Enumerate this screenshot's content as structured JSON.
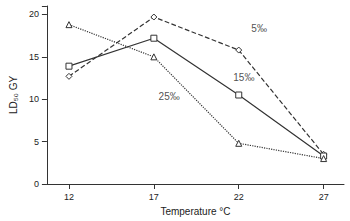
{
  "chart_data": {
    "type": "line",
    "x_label": "Temperature °C",
    "y_label": "LD₅₀ GY",
    "xlim": [
      10.7,
      28.2
    ],
    "xticks": [
      12,
      17,
      22,
      27
    ],
    "ylim": [
      0,
      21
    ],
    "yticks": [
      0,
      5,
      10,
      15,
      20
    ],
    "grid": false,
    "series": [
      {
        "name": "5‰",
        "color": "#333333",
        "line_style": "dashed",
        "marker": "diamond",
        "x": [
          12,
          17,
          22,
          27
        ],
        "values": [
          12.7,
          19.7,
          15.8,
          3.5
        ]
      },
      {
        "name": "15‰",
        "color": "#333333",
        "line_style": "solid",
        "marker": "square",
        "x": [
          12,
          17,
          22,
          27
        ],
        "values": [
          13.9,
          17.2,
          10.5,
          3.3
        ]
      },
      {
        "name": "25‰",
        "color": "#333333",
        "line_style": "dotted",
        "marker": "triangle",
        "x": [
          12,
          17,
          22,
          27
        ],
        "values": [
          18.8,
          15.0,
          4.8,
          3.0
        ]
      }
    ],
    "annotations": [
      {
        "text": "5‰",
        "x": 23.2,
        "y": 18.3
      },
      {
        "text": "15‰",
        "x": 22.3,
        "y": 12.6
      },
      {
        "text": "25‰",
        "x": 17.9,
        "y": 10.3
      }
    ]
  }
}
